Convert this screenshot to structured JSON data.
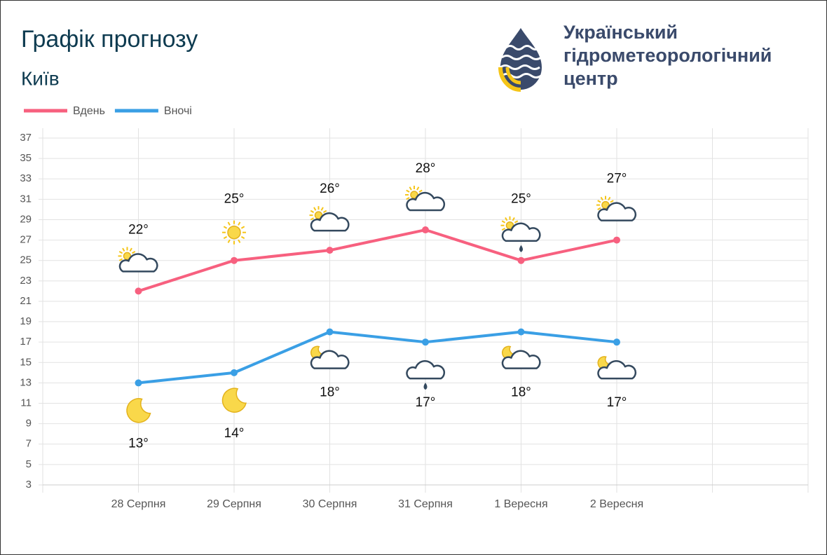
{
  "chart_data": {
    "type": "line",
    "title": "Графік прогнозу",
    "subtitle": "Київ",
    "categories": [
      null,
      "28 Серпня",
      "29 Серпня",
      "30 Серпня",
      "31 Серпня",
      "1 Вересня",
      "2 Вересня",
      null,
      null
    ],
    "series": [
      {
        "name": "Вдень",
        "color": "#f7607f",
        "values": [
          null,
          22,
          25,
          26,
          28,
          25,
          27,
          null,
          null
        ],
        "value_labels": [
          null,
          "22°",
          "25°",
          "26°",
          "28°",
          "25°",
          "27°",
          null,
          null
        ]
      },
      {
        "name": "Вночі",
        "color": "#3a9fe5",
        "values": [
          null,
          13,
          14,
          18,
          17,
          18,
          17,
          null,
          null
        ],
        "value_labels": [
          null,
          "13°",
          "14°",
          "18°",
          "17°",
          "18°",
          "17°",
          null,
          null
        ]
      }
    ],
    "ylim": [
      3,
      37
    ],
    "yticks": [
      3,
      5,
      7,
      9,
      11,
      13,
      15,
      17,
      19,
      21,
      23,
      25,
      27,
      29,
      31,
      33,
      35,
      37
    ],
    "grid": true,
    "legend": "top-left"
  },
  "logo": {
    "lines": [
      "Український",
      "гідрометеорологічний",
      "центр"
    ]
  }
}
